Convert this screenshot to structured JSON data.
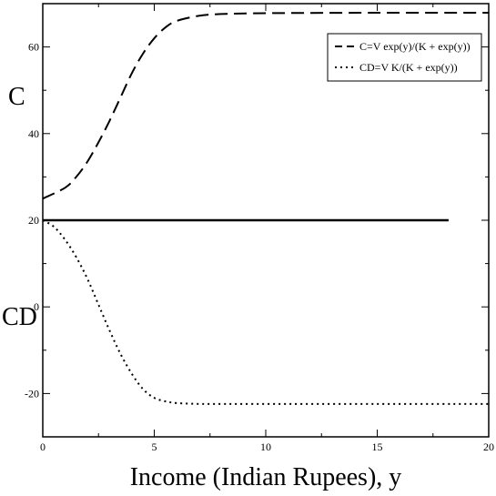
{
  "chart_data": {
    "type": "line",
    "title": "",
    "xlabel": "Income (Indian Rupees), y",
    "ylabels": [
      "C",
      "CD"
    ],
    "xlim": [
      0,
      20
    ],
    "ylim": [
      -30,
      70
    ],
    "xticks": [
      "0",
      "5",
      "10",
      "15",
      "20"
    ],
    "yticks": [
      "-20",
      "0",
      "20",
      "40",
      "60"
    ],
    "xtick_values": [
      0,
      5,
      10,
      15,
      20
    ],
    "ytick_values": [
      -20,
      0,
      20,
      40,
      60
    ],
    "grid": false,
    "legend_position": "top-right",
    "legend": [
      {
        "label": "C=V exp(y)/(K + exp(y))",
        "style": "dashed"
      },
      {
        "label": "CD=V K/(K + exp(y))",
        "style": "dotted"
      }
    ],
    "series": [
      {
        "name": "C=V exp(y)/(K + exp(y))",
        "style": "dashed",
        "x": [
          0,
          1,
          1.5,
          2,
          2.5,
          3,
          3.5,
          4,
          4.5,
          5,
          5.5,
          6,
          7,
          8,
          10,
          15,
          20
        ],
        "y": [
          25,
          27.5,
          30,
          33.5,
          38,
          43,
          48.5,
          54,
          58.5,
          62,
          64.5,
          66,
          67.2,
          67.6,
          67.8,
          67.9,
          67.9
        ]
      },
      {
        "name": "CD=V K/(K + exp(y))",
        "style": "dotted",
        "x": [
          0,
          0.5,
          1,
          1.5,
          2,
          2.5,
          3,
          3.5,
          4,
          4.5,
          5,
          5.5,
          6,
          7,
          8,
          10,
          15,
          20
        ],
        "y": [
          20,
          18.5,
          15.5,
          11.5,
          6.5,
          0.5,
          -5.5,
          -11,
          -15.5,
          -19,
          -21,
          -21.8,
          -22.2,
          -22.4,
          -22.4,
          -22.4,
          -22.4,
          -22.4
        ]
      },
      {
        "name": "",
        "style": "solid",
        "x": [
          0,
          18.2
        ],
        "y": [
          20,
          20
        ]
      }
    ]
  }
}
